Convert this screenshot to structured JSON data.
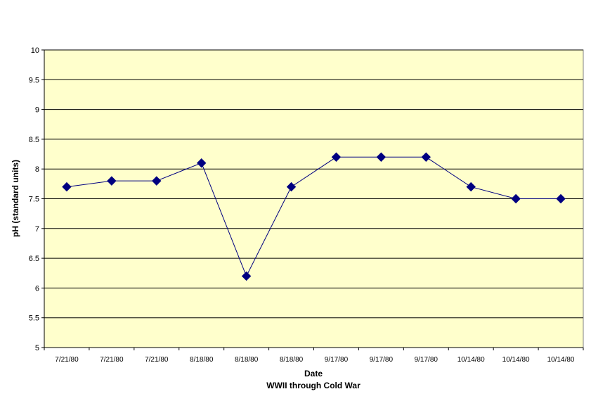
{
  "chart_data": {
    "type": "line",
    "title": "",
    "xlabel": "Date",
    "subtitle": "WWII through Cold War",
    "ylabel": "pH (standard units)",
    "ylim": [
      5,
      10
    ],
    "y_ticks": [
      "5",
      "5.5",
      "6",
      "6.5",
      "7",
      "7.5",
      "8",
      "8.5",
      "9",
      "9.5",
      "10"
    ],
    "categories": [
      "7/21/80",
      "7/21/80",
      "7/21/80",
      "8/18/80",
      "8/18/80",
      "8/18/80",
      "9/17/80",
      "9/17/80",
      "9/17/80",
      "10/14/80",
      "10/14/80",
      "10/14/80"
    ],
    "series": [
      {
        "values": [
          7.7,
          7.8,
          7.8,
          8.1,
          6.2,
          7.7,
          8.2,
          8.2,
          8.2,
          7.7,
          7.5,
          7.5
        ]
      }
    ],
    "grid": true,
    "legend": "none",
    "marker": "diamond",
    "colors": {
      "plot_background": "#FFFFCC",
      "line": "#000080",
      "marker": "#000080",
      "gridline": "#000000"
    }
  }
}
